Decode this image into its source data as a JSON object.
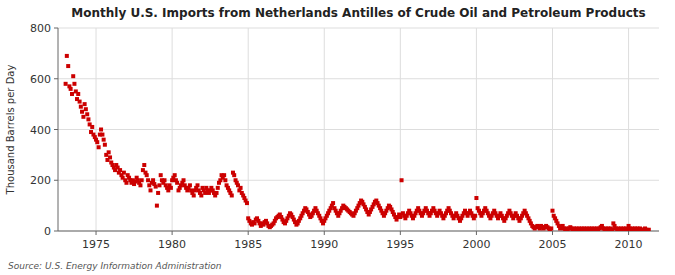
{
  "chart_data": {
    "type": "scatter",
    "title": "Monthly U.S. Imports from Netherlands Antilles of Crude Oil and Petroleum Products",
    "ylabel": "Thousand Barrels per Day",
    "annotations": [
      "Source: U.S. Energy Information Administration"
    ],
    "color": "#cc0000",
    "marker": "square",
    "grid": true,
    "xlim": [
      1972.5,
      2012.0
    ],
    "xticks": [
      1975,
      1980,
      1985,
      1990,
      1995,
      2000,
      2005,
      2010
    ],
    "ylim": [
      0,
      800
    ],
    "yticks": [
      0,
      200,
      400,
      600,
      800
    ],
    "x": [
      1973.0,
      1973.08,
      1973.17,
      1973.25,
      1973.33,
      1973.42,
      1973.5,
      1973.58,
      1973.67,
      1973.75,
      1973.83,
      1973.92,
      1974.0,
      1974.08,
      1974.17,
      1974.25,
      1974.33,
      1974.42,
      1974.5,
      1974.58,
      1974.67,
      1974.75,
      1974.83,
      1974.92,
      1975.0,
      1975.08,
      1975.17,
      1975.25,
      1975.33,
      1975.42,
      1975.5,
      1975.58,
      1975.67,
      1975.75,
      1975.83,
      1975.92,
      1976.0,
      1976.08,
      1976.17,
      1976.25,
      1976.33,
      1976.42,
      1976.5,
      1976.58,
      1976.67,
      1976.75,
      1976.83,
      1976.92,
      1977.0,
      1977.08,
      1977.17,
      1977.25,
      1977.33,
      1977.42,
      1977.5,
      1977.58,
      1977.67,
      1977.75,
      1977.83,
      1977.92,
      1978.0,
      1978.08,
      1978.17,
      1978.25,
      1978.33,
      1978.42,
      1978.5,
      1978.58,
      1978.67,
      1978.75,
      1978.83,
      1978.92,
      1979.0,
      1979.08,
      1979.17,
      1979.25,
      1979.33,
      1979.42,
      1979.5,
      1979.58,
      1979.67,
      1979.75,
      1979.83,
      1979.92,
      1980.0,
      1980.08,
      1980.17,
      1980.25,
      1980.33,
      1980.42,
      1980.5,
      1980.58,
      1980.67,
      1980.75,
      1980.83,
      1980.92,
      1981.0,
      1981.08,
      1981.17,
      1981.25,
      1981.33,
      1981.42,
      1981.5,
      1981.58,
      1981.67,
      1981.75,
      1981.83,
      1981.92,
      1982.0,
      1982.08,
      1982.17,
      1982.25,
      1982.33,
      1982.42,
      1982.5,
      1982.58,
      1982.67,
      1982.75,
      1982.83,
      1982.92,
      1983.0,
      1983.08,
      1983.17,
      1983.25,
      1983.33,
      1983.42,
      1983.5,
      1983.58,
      1983.67,
      1983.75,
      1983.83,
      1983.92,
      1984.0,
      1984.08,
      1984.17,
      1984.25,
      1984.33,
      1984.42,
      1984.5,
      1984.58,
      1984.67,
      1984.75,
      1984.83,
      1984.92,
      1985.0,
      1985.08,
      1985.17,
      1985.25,
      1985.33,
      1985.42,
      1985.5,
      1985.58,
      1985.67,
      1985.75,
      1985.83,
      1985.92,
      1986.0,
      1986.08,
      1986.17,
      1986.25,
      1986.33,
      1986.42,
      1986.5,
      1986.58,
      1986.67,
      1986.75,
      1986.83,
      1986.92,
      1987.0,
      1987.08,
      1987.17,
      1987.25,
      1987.33,
      1987.42,
      1987.5,
      1987.58,
      1987.67,
      1987.75,
      1987.83,
      1987.92,
      1988.0,
      1988.08,
      1988.17,
      1988.25,
      1988.33,
      1988.42,
      1988.5,
      1988.58,
      1988.67,
      1988.75,
      1988.83,
      1988.92,
      1989.0,
      1989.08,
      1989.17,
      1989.25,
      1989.33,
      1989.42,
      1989.5,
      1989.58,
      1989.67,
      1989.75,
      1989.83,
      1989.92,
      1990.0,
      1990.08,
      1990.17,
      1990.25,
      1990.33,
      1990.42,
      1990.5,
      1990.58,
      1990.67,
      1990.75,
      1990.83,
      1990.92,
      1991.0,
      1991.08,
      1991.17,
      1991.25,
      1991.33,
      1991.42,
      1991.5,
      1991.58,
      1991.67,
      1991.75,
      1991.83,
      1991.92,
      1992.0,
      1992.08,
      1992.17,
      1992.25,
      1992.33,
      1992.42,
      1992.5,
      1992.58,
      1992.67,
      1992.75,
      1992.83,
      1992.92,
      1993.0,
      1993.08,
      1993.17,
      1993.25,
      1993.33,
      1993.42,
      1993.5,
      1993.58,
      1993.67,
      1993.75,
      1993.83,
      1993.92,
      1994.0,
      1994.08,
      1994.17,
      1994.25,
      1994.33,
      1994.42,
      1994.5,
      1994.58,
      1994.67,
      1994.75,
      1994.83,
      1994.92,
      1995.0,
      1995.08,
      1995.17,
      1995.25,
      1995.33,
      1995.42,
      1995.5,
      1995.58,
      1995.67,
      1995.75,
      1995.83,
      1995.92,
      1996.0,
      1996.08,
      1996.17,
      1996.25,
      1996.33,
      1996.42,
      1996.5,
      1996.58,
      1996.67,
      1996.75,
      1996.83,
      1996.92,
      1997.0,
      1997.08,
      1997.17,
      1997.25,
      1997.33,
      1997.42,
      1997.5,
      1997.58,
      1997.67,
      1997.75,
      1997.83,
      1997.92,
      1998.0,
      1998.08,
      1998.17,
      1998.25,
      1998.33,
      1998.42,
      1998.5,
      1998.58,
      1998.67,
      1998.75,
      1998.83,
      1998.92,
      1999.0,
      1999.08,
      1999.17,
      1999.25,
      1999.33,
      1999.42,
      1999.5,
      1999.58,
      1999.67,
      1999.75,
      1999.83,
      1999.92,
      2000.0,
      2000.08,
      2000.17,
      2000.25,
      2000.33,
      2000.42,
      2000.5,
      2000.58,
      2000.67,
      2000.75,
      2000.83,
      2000.92,
      2001.0,
      2001.08,
      2001.17,
      2001.25,
      2001.33,
      2001.42,
      2001.5,
      2001.58,
      2001.67,
      2001.75,
      2001.83,
      2001.92,
      2002.0,
      2002.08,
      2002.17,
      2002.25,
      2002.33,
      2002.42,
      2002.5,
      2002.58,
      2002.67,
      2002.75,
      2002.83,
      2002.92,
      2003.0,
      2003.08,
      2003.17,
      2003.25,
      2003.33,
      2003.42,
      2003.5,
      2003.58,
      2003.67,
      2003.75,
      2003.83,
      2003.92,
      2004.0,
      2004.08,
      2004.17,
      2004.25,
      2004.33,
      2004.42,
      2004.5,
      2004.58,
      2004.67,
      2004.75,
      2004.83,
      2004.92,
      2005.0,
      2005.08,
      2005.17,
      2005.25,
      2005.33,
      2005.42,
      2005.5,
      2005.58,
      2005.67,
      2005.75,
      2005.83,
      2005.92,
      2006.0,
      2006.08,
      2006.17,
      2006.25,
      2006.33,
      2006.42,
      2006.5,
      2006.58,
      2006.67,
      2006.75,
      2006.83,
      2006.92,
      2007.0,
      2007.08,
      2007.17,
      2007.25,
      2007.33,
      2007.42,
      2007.5,
      2007.58,
      2007.67,
      2007.75,
      2007.83,
      2007.92,
      2008.0,
      2008.08,
      2008.17,
      2008.25,
      2008.33,
      2008.42,
      2008.5,
      2008.58,
      2008.67,
      2008.75,
      2008.83,
      2008.92,
      2009.0,
      2009.08,
      2009.17,
      2009.25,
      2009.33,
      2009.42,
      2009.5,
      2009.58,
      2009.67,
      2009.75,
      2009.83,
      2009.92,
      2010.0,
      2010.08,
      2010.17,
      2010.25,
      2010.33,
      2010.42,
      2010.5,
      2010.58,
      2010.67,
      2010.75,
      2010.83,
      2010.92,
      2011.0,
      2011.08,
      2011.17,
      2011.25,
      2011.33
    ],
    "values": [
      580,
      690,
      650,
      570,
      560,
      540,
      610,
      580,
      550,
      520,
      540,
      510,
      490,
      470,
      450,
      500,
      480,
      460,
      440,
      420,
      390,
      410,
      380,
      370,
      360,
      350,
      330,
      380,
      400,
      380,
      360,
      340,
      300,
      280,
      310,
      290,
      270,
      260,
      250,
      240,
      260,
      250,
      230,
      240,
      220,
      210,
      230,
      200,
      190,
      220,
      210,
      200,
      190,
      200,
      185,
      195,
      210,
      200,
      190,
      180,
      200,
      240,
      260,
      230,
      220,
      200,
      180,
      160,
      190,
      200,
      185,
      175,
      100,
      150,
      180,
      220,
      200,
      190,
      200,
      180,
      170,
      160,
      180,
      170,
      200,
      210,
      220,
      200,
      190,
      160,
      170,
      180,
      190,
      200,
      180,
      170,
      160,
      170,
      180,
      160,
      150,
      140,
      160,
      170,
      180,
      160,
      150,
      140,
      170,
      160,
      150,
      170,
      160,
      150,
      160,
      170,
      160,
      150,
      140,
      150,
      170,
      190,
      200,
      220,
      210,
      220,
      200,
      180,
      170,
      160,
      150,
      140,
      230,
      220,
      200,
      190,
      180,
      160,
      170,
      150,
      140,
      130,
      120,
      110,
      50,
      40,
      30,
      25,
      35,
      30,
      45,
      50,
      40,
      30,
      20,
      30,
      25,
      35,
      40,
      30,
      20,
      15,
      20,
      25,
      30,
      40,
      50,
      55,
      60,
      65,
      55,
      45,
      35,
      30,
      40,
      50,
      60,
      70,
      65,
      55,
      45,
      35,
      25,
      30,
      40,
      50,
      60,
      70,
      80,
      90,
      85,
      75,
      65,
      55,
      60,
      70,
      80,
      90,
      80,
      70,
      60,
      50,
      40,
      30,
      40,
      50,
      60,
      70,
      80,
      90,
      100,
      110,
      90,
      80,
      70,
      60,
      70,
      80,
      90,
      100,
      95,
      90,
      85,
      80,
      75,
      70,
      65,
      60,
      70,
      80,
      90,
      100,
      110,
      120,
      115,
      105,
      95,
      85,
      75,
      65,
      75,
      85,
      95,
      105,
      115,
      120,
      110,
      100,
      90,
      80,
      70,
      60,
      70,
      80,
      90,
      100,
      95,
      85,
      75,
      65,
      55,
      45,
      55,
      65,
      55,
      200,
      70,
      60,
      50,
      60,
      70,
      80,
      70,
      60,
      50,
      60,
      70,
      80,
      90,
      80,
      70,
      60,
      70,
      80,
      90,
      80,
      70,
      60,
      70,
      80,
      90,
      80,
      70,
      60,
      70,
      80,
      70,
      60,
      50,
      60,
      70,
      80,
      90,
      80,
      70,
      60,
      50,
      60,
      70,
      60,
      50,
      40,
      50,
      60,
      70,
      80,
      70,
      60,
      70,
      80,
      70,
      60,
      50,
      60,
      130,
      90,
      80,
      70,
      60,
      70,
      80,
      90,
      80,
      70,
      60,
      50,
      60,
      70,
      80,
      70,
      60,
      50,
      60,
      70,
      60,
      50,
      40,
      50,
      60,
      70,
      80,
      70,
      60,
      50,
      60,
      70,
      60,
      50,
      40,
      50,
      60,
      70,
      80,
      70,
      60,
      50,
      40,
      30,
      20,
      15,
      10,
      15,
      20,
      15,
      10,
      20,
      15,
      10,
      15,
      20,
      15,
      10,
      5,
      10,
      80,
      60,
      50,
      40,
      30,
      20,
      10,
      15,
      20,
      10,
      5,
      10,
      5,
      10,
      15,
      10,
      5,
      10,
      5,
      10,
      5,
      10,
      5,
      10,
      5,
      10,
      5,
      10,
      5,
      10,
      5,
      10,
      5,
      10,
      5,
      10,
      5,
      10,
      15,
      20,
      10,
      5,
      10,
      5,
      10,
      5,
      10,
      5,
      30,
      20,
      10,
      5,
      10,
      5,
      10,
      5,
      10,
      5,
      10,
      5,
      20,
      10,
      5,
      10,
      5,
      10,
      5,
      10,
      5,
      10,
      5,
      5,
      5,
      10,
      5,
      3,
      5
    ]
  }
}
